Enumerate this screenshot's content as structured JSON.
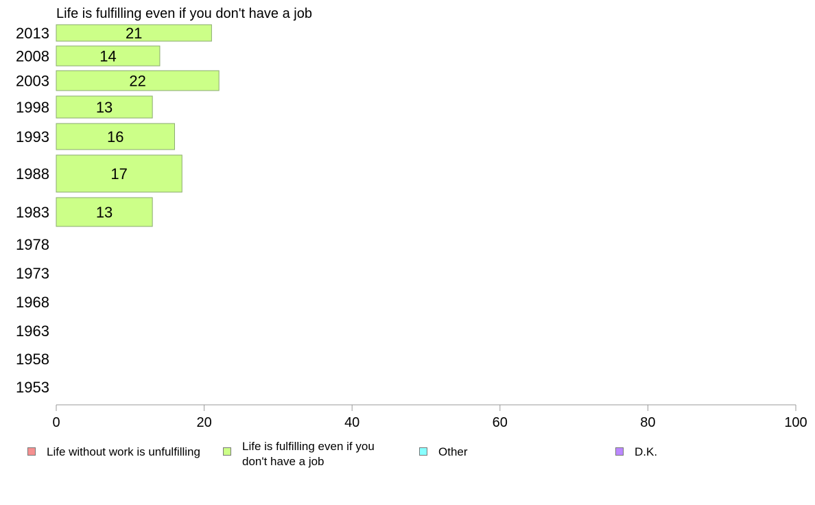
{
  "chart_data": {
    "type": "bar",
    "orientation": "horizontal",
    "title": "Life is fulfilling even if you don't have a job",
    "categories": [
      "2013",
      "2008",
      "2003",
      "1998",
      "1993",
      "1988",
      "1983",
      "1978",
      "1973",
      "1968",
      "1963",
      "1958",
      "1953"
    ],
    "series": [
      {
        "name": "Life is fulfilling even if you don't have a job",
        "values": [
          21,
          14,
          22,
          13,
          16,
          17,
          13,
          null,
          null,
          null,
          null,
          null,
          null
        ]
      }
    ],
    "data_labels": [
      "21",
      "14",
      "22",
      "13",
      "16",
      "17",
      "13",
      "",
      "",
      "",
      "",
      "",
      ""
    ],
    "xlim": [
      0,
      100
    ],
    "xticks": [
      "0",
      "20",
      "40",
      "60",
      "80",
      "100"
    ],
    "grid": false,
    "bar_color": "#ccff88",
    "legend_position": "bottom"
  },
  "legend": [
    {
      "label": "Life without work is unfulfilling",
      "color": "#f59090"
    },
    {
      "label": "Life is fulfilling even if you don't have a job",
      "color": "#ccff88"
    },
    {
      "label": "Other",
      "color": "#88ffff"
    },
    {
      "label": "D.K.",
      "color": "#bb88ff"
    }
  ]
}
